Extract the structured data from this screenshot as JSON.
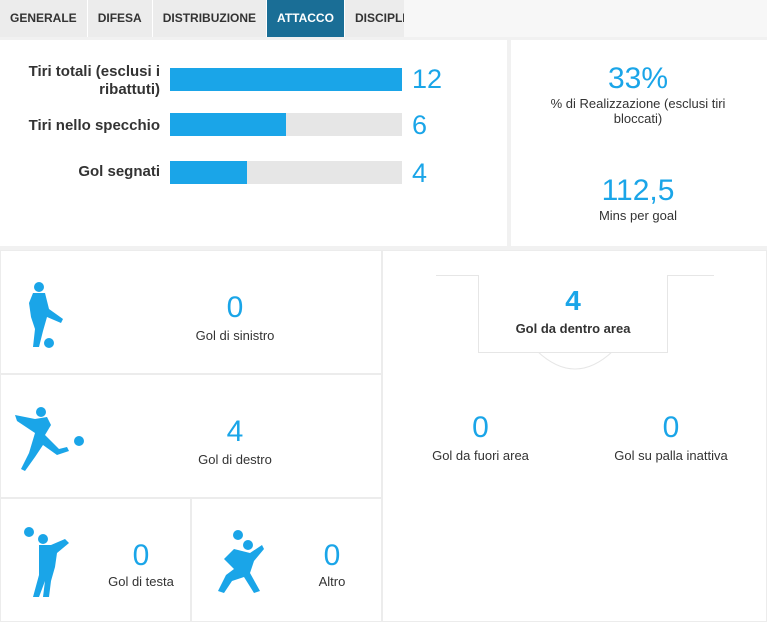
{
  "colors": {
    "accent": "#1aa5e8",
    "tab_active": "#1a6e96"
  },
  "tabs": [
    {
      "label": "GENERALE",
      "active": false
    },
    {
      "label": "DIFESA",
      "active": false
    },
    {
      "label": "DISTRIBUZIONE",
      "active": false
    },
    {
      "label": "ATTACCO",
      "active": true
    },
    {
      "label": "DISCIPLINA",
      "active": false
    }
  ],
  "bars": [
    {
      "label": "Tiri totali (esclusi i ribattuti)",
      "value": "12",
      "fraction": 1.0
    },
    {
      "label": "Tiri nello specchio",
      "value": "6",
      "fraction": 0.5
    },
    {
      "label": "Gol segnati",
      "value": "4",
      "fraction": 0.333
    }
  ],
  "summary": {
    "conversion_value": "33%",
    "conversion_label": "% di Realizzazione (esclusi tiri bloccati)",
    "mins_value": "112,5",
    "mins_label": "Mins per goal"
  },
  "methods": {
    "left_value": "0",
    "left_label": "Gol di sinistro",
    "left_icon": "left-foot-kick-icon",
    "right_value": "4",
    "right_label": "Gol di destro",
    "right_icon": "right-foot-kick-icon",
    "head_value": "0",
    "head_label": "Gol di testa",
    "head_icon": "header-icon",
    "other_value": "0",
    "other_label": "Altro",
    "other_icon": "bicycle-kick-icon"
  },
  "areas": {
    "inside_value": "4",
    "inside_label": "Gol da dentro area",
    "outside_value": "0",
    "outside_label": "Gol da fuori area",
    "setpiece_value": "0",
    "setpiece_label": "Gol su palla inattiva"
  }
}
